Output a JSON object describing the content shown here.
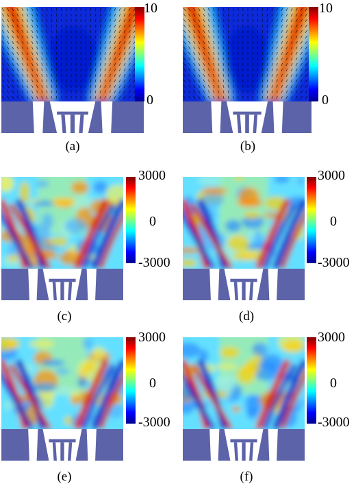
{
  "figure": {
    "panels": [
      {
        "id": "a",
        "label": "(a)",
        "kind": "velocity",
        "seed": 3
      },
      {
        "id": "b",
        "label": "(b)",
        "kind": "velocity",
        "seed": 7
      },
      {
        "id": "c",
        "label": "(c)",
        "kind": "vorticity",
        "seed": 11
      },
      {
        "id": "d",
        "label": "(d)",
        "kind": "vorticity",
        "seed": 19
      },
      {
        "id": "e",
        "label": "(e)",
        "kind": "vorticity",
        "seed": 23
      },
      {
        "id": "f",
        "label": "(f)",
        "kind": "vorticity",
        "seed": 31
      }
    ],
    "colorbars": {
      "velocity": {
        "max": "10",
        "min": "0",
        "range": [
          0,
          10
        ]
      },
      "vorticity": {
        "max": "3000",
        "mid": "0",
        "min": "-3000",
        "range": [
          -3000,
          3000
        ]
      }
    },
    "colors": {
      "colormap": "jet",
      "geometry": "#5c63a8",
      "background": "#ffffff"
    }
  }
}
